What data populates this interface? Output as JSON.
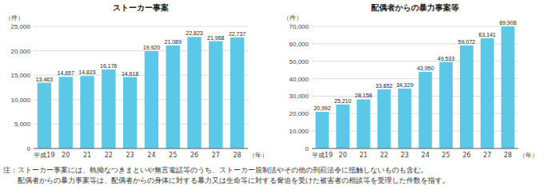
{
  "chart_data": [
    {
      "type": "bar",
      "title": "ストーカー事案",
      "categories": [
        "平成19",
        "20",
        "21",
        "22",
        "23",
        "24",
        "25",
        "26",
        "27",
        "28"
      ],
      "values": [
        13463,
        14657,
        14823,
        16176,
        14618,
        19920,
        21089,
        22823,
        21968,
        22737
      ],
      "value_labels": [
        "13,463",
        "14,657",
        "14,823",
        "16,176",
        "14,618",
        "19,920",
        "21,089",
        "22,823",
        "21,968",
        "22,737"
      ],
      "data_labels": true,
      "color": "#5bc8e8",
      "ylim": [
        0,
        25000
      ],
      "yticks": [
        0,
        {
          "value": 5000,
          "label": "5,000"
        },
        {
          "value": 10000,
          "label": "10,000"
        },
        {
          "value": 15000,
          "label": "15,000"
        },
        {
          "value": 20000,
          "label": "20,000"
        },
        {
          "value": 25000,
          "label": "25,000"
        }
      ],
      "grid": true,
      "xlabel": "（年）",
      "ylabel": "（件）"
    },
    {
      "type": "bar",
      "title": "配偶者からの暴力事案等",
      "categories": [
        "平成19",
        "20",
        "21",
        "22",
        "23",
        "24",
        "25",
        "26",
        "27",
        "28"
      ],
      "values": [
        20992,
        25210,
        28158,
        33852,
        34329,
        43950,
        49533,
        59072,
        63141,
        69908
      ],
      "value_labels": [
        "20,992",
        "25,210",
        "28,158",
        "33,852",
        "34,329",
        "43,950",
        "49,533",
        "59,072",
        "63,141",
        "69,908"
      ],
      "data_labels": true,
      "color": "#5bc8e8",
      "ylim": [
        0,
        70000
      ],
      "yticks": [
        0,
        {
          "value": 10000,
          "label": "10,000"
        },
        {
          "value": 20000,
          "label": "20,000"
        },
        {
          "value": 30000,
          "label": "30,000"
        },
        {
          "value": 40000,
          "label": "40,000"
        },
        {
          "value": 50000,
          "label": "50,000"
        },
        {
          "value": 60000,
          "label": "60,000"
        },
        {
          "value": 70000,
          "label": "70,000"
        }
      ],
      "grid": true,
      "xlabel": "（年）",
      "ylabel": "（件）"
    }
  ],
  "notes": [
    "注：ストーカー事案には、執拗なつきまといや無言電話等のうち、ストーカー規制法やその他の刑罰法令に抵触しないものも含む。",
    "　　配偶者からの暴力事案等は、配偶者からの身体に対する暴力又は生命等に対する脅迫を受けた被害者の相談等を受理した件数を指す。"
  ]
}
